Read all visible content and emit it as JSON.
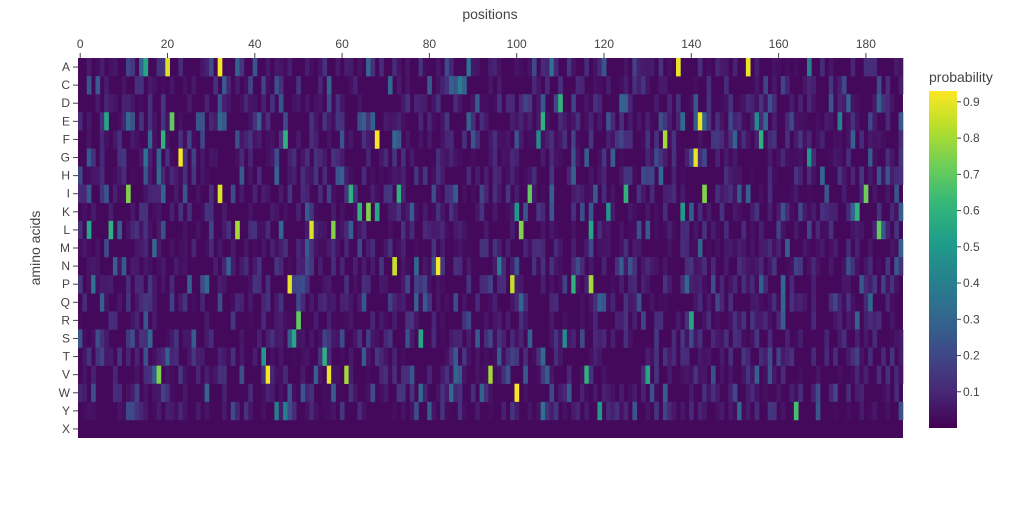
{
  "chart_data": {
    "type": "heatmap",
    "title": "",
    "xlabel": "positions",
    "ylabel": "amino acids",
    "x_tick_labels": [
      "0",
      "20",
      "40",
      "60",
      "80",
      "100",
      "120",
      "140",
      "160",
      "180"
    ],
    "x_tick_values": [
      0,
      20,
      40,
      60,
      80,
      100,
      120,
      140,
      160,
      180
    ],
    "x_range": [
      -0.5,
      188.5
    ],
    "n_positions": 189,
    "rows": [
      "A",
      "C",
      "D",
      "E",
      "F",
      "G",
      "H",
      "I",
      "K",
      "L",
      "M",
      "N",
      "P",
      "Q",
      "R",
      "S",
      "T",
      "V",
      "W",
      "Y",
      "X"
    ],
    "colorbar": {
      "title": "probability",
      "tick_labels": [
        "0.9",
        "0.8",
        "0.7",
        "0.6",
        "0.5",
        "0.4",
        "0.3",
        "0.2",
        "0.1"
      ],
      "tick_values": [
        0.9,
        0.8,
        0.7,
        0.6,
        0.5,
        0.4,
        0.3,
        0.2,
        0.1
      ],
      "range": [
        0.0,
        0.93
      ]
    },
    "colorscale": [
      "#440154",
      "#482878",
      "#3e4989",
      "#31688e",
      "#26828e",
      "#1f9e89",
      "#35b779",
      "#6ece58",
      "#b5de2b",
      "#fde725"
    ],
    "background_value": 0.02,
    "grid": false,
    "high_cells": [
      {
        "row": "A",
        "pos": 15,
        "value": 0.55
      },
      {
        "row": "A",
        "pos": 20,
        "value": 0.88
      },
      {
        "row": "A",
        "pos": 32,
        "value": 0.92
      },
      {
        "row": "A",
        "pos": 137,
        "value": 0.9
      },
      {
        "row": "A",
        "pos": 153,
        "value": 0.9
      },
      {
        "row": "A",
        "pos": 89,
        "value": 0.35
      },
      {
        "row": "A",
        "pos": 108,
        "value": 0.35
      },
      {
        "row": "A",
        "pos": 167,
        "value": 0.4
      },
      {
        "row": "C",
        "pos": 87,
        "value": 0.4
      },
      {
        "row": "D",
        "pos": 110,
        "value": 0.6
      },
      {
        "row": "E",
        "pos": 6,
        "value": 0.55
      },
      {
        "row": "E",
        "pos": 21,
        "value": 0.7
      },
      {
        "row": "E",
        "pos": 106,
        "value": 0.6
      },
      {
        "row": "E",
        "pos": 142,
        "value": 0.9
      },
      {
        "row": "E",
        "pos": 155,
        "value": 0.45
      },
      {
        "row": "E",
        "pos": 174,
        "value": 0.4
      },
      {
        "row": "F",
        "pos": 19,
        "value": 0.6
      },
      {
        "row": "F",
        "pos": 47,
        "value": 0.6
      },
      {
        "row": "F",
        "pos": 68,
        "value": 0.92
      },
      {
        "row": "F",
        "pos": 105,
        "value": 0.45
      },
      {
        "row": "F",
        "pos": 134,
        "value": 0.8
      },
      {
        "row": "F",
        "pos": 156,
        "value": 0.6
      },
      {
        "row": "G",
        "pos": 23,
        "value": 0.92
      },
      {
        "row": "G",
        "pos": 141,
        "value": 0.9
      },
      {
        "row": "G",
        "pos": 15,
        "value": 0.35
      },
      {
        "row": "G",
        "pos": 167,
        "value": 0.5
      },
      {
        "row": "H",
        "pos": 45,
        "value": 0.3
      },
      {
        "row": "I",
        "pos": 11,
        "value": 0.75
      },
      {
        "row": "I",
        "pos": 32,
        "value": 0.88
      },
      {
        "row": "I",
        "pos": 62,
        "value": 0.6
      },
      {
        "row": "I",
        "pos": 73,
        "value": 0.6
      },
      {
        "row": "I",
        "pos": 103,
        "value": 0.7
      },
      {
        "row": "I",
        "pos": 125,
        "value": 0.6
      },
      {
        "row": "I",
        "pos": 143,
        "value": 0.75
      },
      {
        "row": "I",
        "pos": 180,
        "value": 0.72
      },
      {
        "row": "K",
        "pos": 64,
        "value": 0.6
      },
      {
        "row": "K",
        "pos": 66,
        "value": 0.75
      },
      {
        "row": "K",
        "pos": 68,
        "value": 0.55
      },
      {
        "row": "K",
        "pos": 100,
        "value": 0.5
      },
      {
        "row": "K",
        "pos": 121,
        "value": 0.5
      },
      {
        "row": "K",
        "pos": 138,
        "value": 0.5
      },
      {
        "row": "K",
        "pos": 178,
        "value": 0.6
      },
      {
        "row": "L",
        "pos": 2,
        "value": 0.55
      },
      {
        "row": "L",
        "pos": 7,
        "value": 0.6
      },
      {
        "row": "L",
        "pos": 36,
        "value": 0.8
      },
      {
        "row": "L",
        "pos": 53,
        "value": 0.88
      },
      {
        "row": "L",
        "pos": 58,
        "value": 0.75
      },
      {
        "row": "L",
        "pos": 101,
        "value": 0.75
      },
      {
        "row": "L",
        "pos": 117,
        "value": 0.55
      },
      {
        "row": "L",
        "pos": 183,
        "value": 0.7
      },
      {
        "row": "N",
        "pos": 72,
        "value": 0.85
      },
      {
        "row": "N",
        "pos": 82,
        "value": 0.92
      },
      {
        "row": "N",
        "pos": 96,
        "value": 0.4
      },
      {
        "row": "P",
        "pos": 48,
        "value": 0.9
      },
      {
        "row": "P",
        "pos": 99,
        "value": 0.85
      },
      {
        "row": "P",
        "pos": 113,
        "value": 0.6
      },
      {
        "row": "P",
        "pos": 117,
        "value": 0.8
      },
      {
        "row": "P",
        "pos": 3,
        "value": 0.35
      },
      {
        "row": "R",
        "pos": 50,
        "value": 0.7
      },
      {
        "row": "R",
        "pos": 140,
        "value": 0.55
      },
      {
        "row": "S",
        "pos": 49,
        "value": 0.55
      },
      {
        "row": "S",
        "pos": 78,
        "value": 0.55
      },
      {
        "row": "S",
        "pos": 111,
        "value": 0.45
      },
      {
        "row": "T",
        "pos": 56,
        "value": 0.6
      },
      {
        "row": "T",
        "pos": 42,
        "value": 0.5
      },
      {
        "row": "V",
        "pos": 18,
        "value": 0.75
      },
      {
        "row": "V",
        "pos": 43,
        "value": 0.92
      },
      {
        "row": "V",
        "pos": 57,
        "value": 0.9
      },
      {
        "row": "V",
        "pos": 61,
        "value": 0.8
      },
      {
        "row": "V",
        "pos": 94,
        "value": 0.8
      },
      {
        "row": "V",
        "pos": 116,
        "value": 0.6
      },
      {
        "row": "V",
        "pos": 130,
        "value": 0.55
      },
      {
        "row": "W",
        "pos": 100,
        "value": 0.92
      },
      {
        "row": "Y",
        "pos": 45,
        "value": 0.4
      },
      {
        "row": "Y",
        "pos": 47,
        "value": 0.4
      },
      {
        "row": "Y",
        "pos": 119,
        "value": 0.5
      },
      {
        "row": "Y",
        "pos": 164,
        "value": 0.65
      },
      {
        "row": "Y",
        "pos": 106,
        "value": 0.35
      }
    ]
  }
}
